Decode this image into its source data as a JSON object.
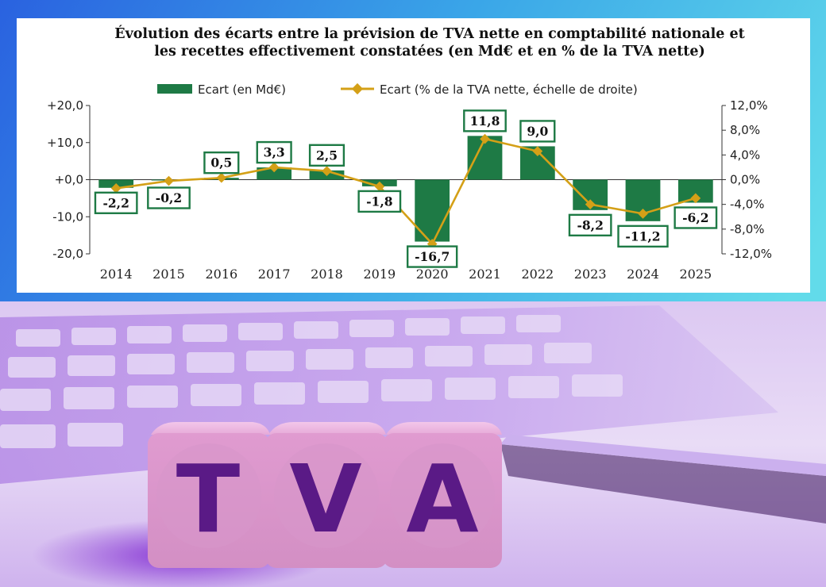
{
  "image_letters": [
    "T",
    "V",
    "A"
  ],
  "chart_data": {
    "type": "bar",
    "title": "Évolution des écarts entre la prévision de TVA nette en comptabilité nationale et les recettes effectivement constatées (en Md€ et en % de la TVA nette)",
    "title_lines": [
      "Évolution des écarts entre la prévision de TVA nette en comptabilité nationale et",
      "les recettes effectivement constatées (en Md€ et en % de la TVA nette)"
    ],
    "categories": [
      "2014",
      "2015",
      "2016",
      "2017",
      "2018",
      "2019",
      "2020",
      "2021",
      "2022",
      "2023",
      "2024",
      "2025"
    ],
    "series": [
      {
        "name": "Ecart (en Md€)",
        "type": "bar",
        "axis": "left",
        "color": "#1e7a45",
        "values": [
          -2.2,
          -0.2,
          0.5,
          3.3,
          2.5,
          -1.8,
          -16.7,
          11.8,
          9.0,
          -8.2,
          -11.2,
          -6.2
        ],
        "data_labels": [
          "-2,2",
          "-0,2",
          "0,5",
          "3,3",
          "2,5",
          "-1,8",
          "-16,7",
          "11,8",
          "9,0",
          "-8,2",
          "-11,2",
          "-6,2"
        ]
      },
      {
        "name": "Ecart (% de la TVA nette, échelle de droite)",
        "type": "line",
        "axis": "right",
        "color": "#d4a017",
        "values": [
          -1.4,
          -0.2,
          0.3,
          2.0,
          1.4,
          -1.1,
          -10.4,
          6.6,
          4.6,
          -4.0,
          -5.5,
          -3.0
        ]
      }
    ],
    "ylim": [
      -20,
      20
    ],
    "yticks": [
      20,
      10,
      0,
      -10,
      -20
    ],
    "ytick_labels": [
      "+20,0",
      "+10,0",
      "+0,0",
      "-10,0",
      "-20,0"
    ],
    "y2lim": [
      -12,
      12
    ],
    "y2ticks": [
      12,
      8,
      4,
      0,
      -4,
      -8,
      -12
    ],
    "y2tick_labels": [
      "12,0%",
      "8,0%",
      "4,0%",
      "0,0%",
      "-4,0%",
      "-8,0%",
      "-12,0%"
    ],
    "label_box_color": "#1e7a45",
    "legend_position": "top",
    "grid": false
  }
}
